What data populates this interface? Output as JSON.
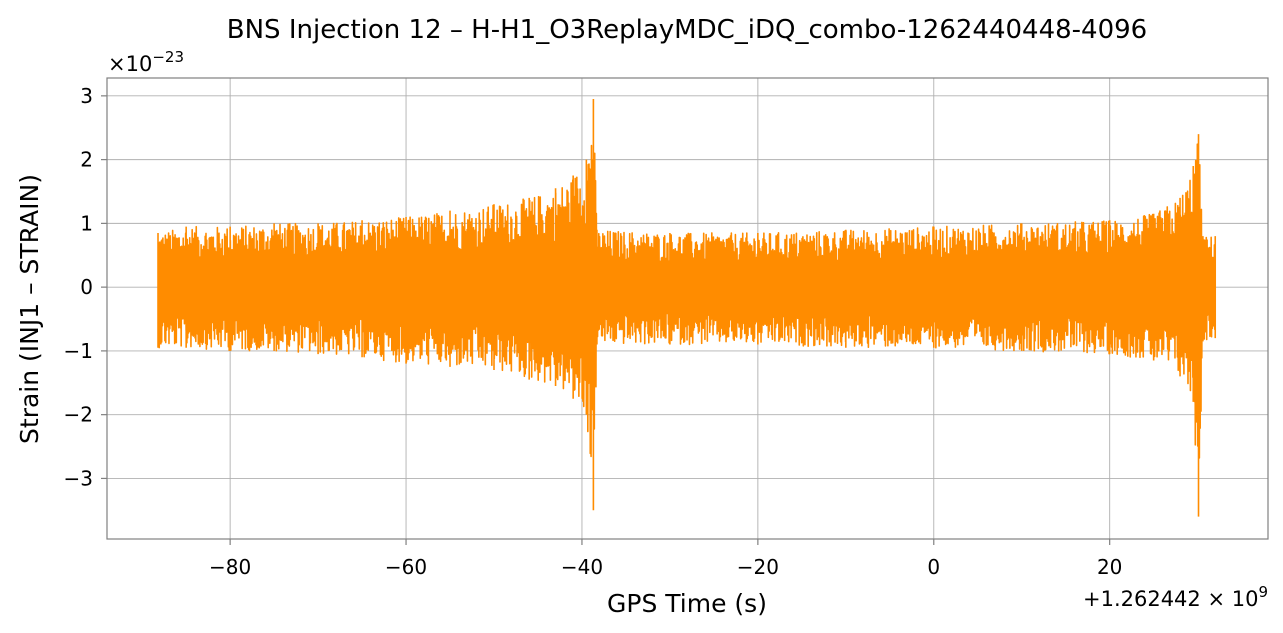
{
  "chart_data": {
    "type": "line",
    "title": "BNS Injection 12 – H-H1_O3ReplayMDC_iDQ_combo-1262440448-4096",
    "xlabel": "GPS Time (s)",
    "ylabel": "Strain (INJ1 – STRAIN)",
    "x_offset_label": "+1.262442 × 10",
    "x_offset_exponent": "9",
    "y_scale_label": "×10",
    "y_scale_exponent": "−23",
    "xlim": [
      -94,
      38
    ],
    "ylim": [
      -3.95,
      3.28
    ],
    "xticks": [
      {
        "value": -80,
        "label": "−80"
      },
      {
        "value": -60,
        "label": "−60"
      },
      {
        "value": -40,
        "label": "−40"
      },
      {
        "value": -20,
        "label": "−20"
      },
      {
        "value": 0,
        "label": "0"
      },
      {
        "value": 20,
        "label": "20"
      }
    ],
    "yticks": [
      {
        "value": 3,
        "label": "3"
      },
      {
        "value": 2,
        "label": "2"
      },
      {
        "value": 1,
        "label": "1"
      },
      {
        "value": 0,
        "label": "0"
      },
      {
        "value": -1,
        "label": "−1"
      },
      {
        "value": -2,
        "label": "−2"
      },
      {
        "value": -3,
        "label": "−3"
      }
    ],
    "grid": true,
    "series": [
      {
        "color": "#ff8c00",
        "envelope": [
          {
            "x": -88.2,
            "max": 0.85,
            "min": -0.95
          },
          {
            "x": -85,
            "max": 0.95,
            "min": -0.95
          },
          {
            "x": -80,
            "max": 0.95,
            "min": -1.0
          },
          {
            "x": -75,
            "max": 1.0,
            "min": -1.0
          },
          {
            "x": -70,
            "max": 1.0,
            "min": -1.05
          },
          {
            "x": -65,
            "max": 1.05,
            "min": -1.1
          },
          {
            "x": -60,
            "max": 1.1,
            "min": -1.2
          },
          {
            "x": -55,
            "max": 1.2,
            "min": -1.25
          },
          {
            "x": -50,
            "max": 1.3,
            "min": -1.3
          },
          {
            "x": -46,
            "max": 1.4,
            "min": -1.45
          },
          {
            "x": -43,
            "max": 1.55,
            "min": -1.55
          },
          {
            "x": -41,
            "max": 1.75,
            "min": -1.75
          },
          {
            "x": -39.5,
            "max": 2.0,
            "min": -2.0
          },
          {
            "x": -38.7,
            "max": 2.95,
            "min": -3.5
          },
          {
            "x": -38.3,
            "max": 0.9,
            "min": -0.9
          },
          {
            "x": -30,
            "max": 0.85,
            "min": -0.9
          },
          {
            "x": -20,
            "max": 0.85,
            "min": -0.9
          },
          {
            "x": -10,
            "max": 0.9,
            "min": -0.95
          },
          {
            "x": 0,
            "max": 0.95,
            "min": -0.95
          },
          {
            "x": 10,
            "max": 1.0,
            "min": -1.0
          },
          {
            "x": 20,
            "max": 1.05,
            "min": -1.05
          },
          {
            "x": 25,
            "max": 1.15,
            "min": -1.15
          },
          {
            "x": 28,
            "max": 1.4,
            "min": -1.4
          },
          {
            "x": 29.5,
            "max": 1.9,
            "min": -1.8
          },
          {
            "x": 30.1,
            "max": 2.4,
            "min": -3.6
          },
          {
            "x": 30.6,
            "max": 0.8,
            "min": -0.85
          },
          {
            "x": 32,
            "max": 0.8,
            "min": -0.8
          }
        ]
      }
    ]
  }
}
